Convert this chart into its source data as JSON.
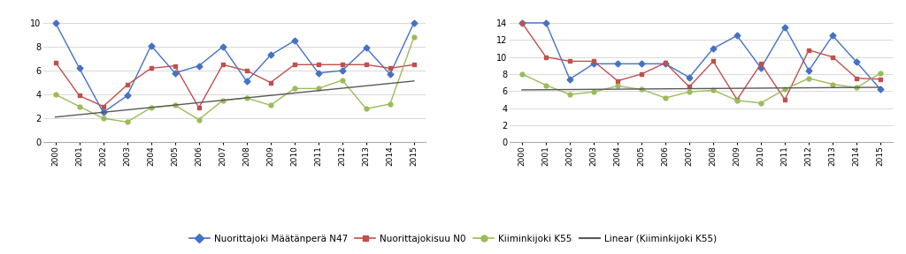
{
  "years": [
    2000,
    2001,
    2002,
    2003,
    2004,
    2005,
    2006,
    2007,
    2008,
    2009,
    2010,
    2011,
    2012,
    2013,
    2014,
    2015
  ],
  "left_N47": [
    10.0,
    6.2,
    2.5,
    3.9,
    8.1,
    5.8,
    6.4,
    8.0,
    5.1,
    7.3,
    8.5,
    5.8,
    6.0,
    7.9,
    5.7,
    10.0
  ],
  "left_N0": [
    6.7,
    3.9,
    3.0,
    4.8,
    6.2,
    6.4,
    2.9,
    6.5,
    6.0,
    5.0,
    6.5,
    6.5,
    6.5,
    6.5,
    6.2,
    6.5
  ],
  "left_K55": [
    4.0,
    3.0,
    2.0,
    1.7,
    2.9,
    3.1,
    1.9,
    3.5,
    3.7,
    3.1,
    4.5,
    4.5,
    5.2,
    2.8,
    3.2,
    8.8
  ],
  "right_N47": [
    14.0,
    14.0,
    7.4,
    9.2,
    9.2,
    9.2,
    9.2,
    7.6,
    11.0,
    12.5,
    8.7,
    13.5,
    8.4,
    12.5,
    9.4,
    6.2
  ],
  "right_N0": [
    14.0,
    10.0,
    9.5,
    9.5,
    7.2,
    8.0,
    9.3,
    6.5,
    9.5,
    5.0,
    9.2,
    5.0,
    10.8,
    10.0,
    7.5,
    7.4
  ],
  "right_K55": [
    8.0,
    6.7,
    5.6,
    5.9,
    6.6,
    6.2,
    5.2,
    5.9,
    6.1,
    4.9,
    4.6,
    6.2,
    7.5,
    6.8,
    6.4,
    8.1
  ],
  "color_N47": "#4472C4",
  "color_N0": "#C0504D",
  "color_K55": "#9BBB59",
  "color_linear": "#595959",
  "left_ylim": [
    0,
    10
  ],
  "left_yticks": [
    0,
    2,
    4,
    6,
    8,
    10
  ],
  "right_ylim": [
    0,
    14
  ],
  "right_yticks": [
    0,
    2,
    4,
    6,
    8,
    10,
    12,
    14
  ],
  "bg_color": "#FFFFFF",
  "grid_color": "#D9D9D9",
  "legend_labels": [
    "Nuorittajoki Määtänperä N47",
    "Nuorittajokisuu N0",
    "Kiiminkijoki K55",
    "Linear (Kiiminkijoki K55)"
  ]
}
